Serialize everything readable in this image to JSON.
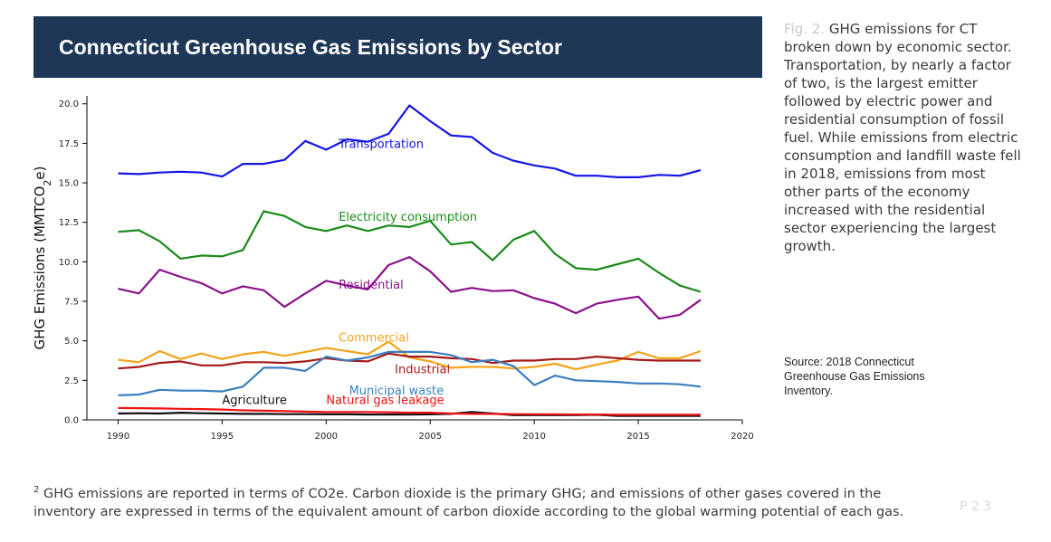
{
  "slide": {
    "title": "Connecticut Greenhouse Gas Emissions by Sector",
    "caption_prefix": "Fig. 2.",
    "caption": "GHG emissions for CT broken down by economic sector. Transportation, by nearly a factor of two, is the largest emitter followed by electric power and residential consumption of fossil fuel. While emissions from electric consumption and landfill waste fell in 2018, emissions from most other parts of the economy increased with the residential sector experiencing the largest growth.",
    "source": "Source: 2018 Connecticut Greenhouse Gas Emissions Inventory.",
    "footnote_mark": "2",
    "footnote": "GHG emissions are reported in terms of CO2e. Carbon dioxide is the primary GHG; and emissions of other gases covered in the inventory are expressed in terms of the equivalent amount of carbon dioxide according to the global warming potential of each gas.",
    "page_mark": "P  2 3"
  },
  "chart_data": {
    "type": "line",
    "title": "Connecticut Greenhouse Gas Emissions by Sector",
    "xlabel": "",
    "ylabel_parts": [
      "GHG Emissions (MMTCO",
      "2",
      "e)"
    ],
    "xlim": [
      1988.5,
      2020
    ],
    "ylim": [
      0,
      20.5
    ],
    "x_ticks": [
      1990,
      1995,
      2000,
      2005,
      2010,
      2015,
      2020
    ],
    "y_ticks": [
      0.0,
      2.5,
      5.0,
      7.5,
      10.0,
      12.5,
      15.0,
      17.5,
      20.0
    ],
    "y_tick_labels": [
      "0.0",
      "2.5",
      "5.0",
      "7.5",
      "10.0",
      "12.5",
      "15.0",
      "17.5",
      "20.0"
    ],
    "grid": false,
    "x": [
      1990,
      1991,
      1992,
      1993,
      1994,
      1995,
      1996,
      1997,
      1998,
      1999,
      2000,
      2001,
      2002,
      2003,
      2004,
      2005,
      2006,
      2007,
      2008,
      2009,
      2010,
      2011,
      2012,
      2013,
      2014,
      2015,
      2016,
      2017,
      2018
    ],
    "series": [
      {
        "name": "Transportation",
        "color": "#1414e6",
        "label_x": 2000.6,
        "label_y": 17.2,
        "values": [
          15.6,
          15.55,
          15.65,
          15.7,
          15.65,
          15.4,
          16.2,
          16.2,
          16.45,
          17.65,
          17.1,
          17.75,
          17.6,
          18.1,
          19.9,
          18.9,
          18.0,
          17.9,
          16.9,
          16.4,
          16.1,
          15.9,
          15.45,
          15.45,
          15.35,
          15.35,
          15.5,
          15.45,
          15.8
        ]
      },
      {
        "name": "Electricity consumption",
        "color": "#1a8a1a",
        "label_x": 2000.6,
        "label_y": 12.6,
        "values": [
          11.9,
          12.0,
          11.3,
          10.2,
          10.4,
          10.35,
          10.75,
          13.2,
          12.9,
          12.2,
          11.95,
          12.3,
          11.95,
          12.3,
          12.2,
          12.6,
          11.1,
          11.25,
          10.1,
          11.4,
          11.95,
          10.5,
          9.6,
          9.5,
          9.85,
          10.2,
          9.3,
          8.5,
          8.1
        ]
      },
      {
        "name": "Residential",
        "color": "#8b118b",
        "label_x": 2000.6,
        "label_y": 8.3,
        "values": [
          8.3,
          8.0,
          9.5,
          9.05,
          8.65,
          8.0,
          8.45,
          8.2,
          7.15,
          8.0,
          8.8,
          8.5,
          8.25,
          9.8,
          10.3,
          9.4,
          8.1,
          8.35,
          8.15,
          8.2,
          7.7,
          7.35,
          6.75,
          7.35,
          7.6,
          7.8,
          6.4,
          6.65,
          7.6
        ]
      },
      {
        "name": "Commercial",
        "color": "#f5a31a",
        "label_x": 2000.6,
        "label_y": 4.95,
        "values": [
          3.8,
          3.65,
          4.35,
          3.85,
          4.2,
          3.85,
          4.15,
          4.3,
          4.05,
          4.3,
          4.55,
          4.35,
          4.15,
          4.95,
          3.95,
          3.7,
          3.3,
          3.35,
          3.35,
          3.25,
          3.35,
          3.55,
          3.2,
          3.5,
          3.75,
          4.3,
          3.9,
          3.9,
          4.35
        ]
      },
      {
        "name": "Industrial",
        "color": "#a31a1a",
        "label_x": 2003.3,
        "label_y": 2.95,
        "values": [
          3.25,
          3.35,
          3.6,
          3.7,
          3.45,
          3.45,
          3.65,
          3.65,
          3.6,
          3.7,
          3.9,
          3.75,
          3.7,
          4.2,
          4.0,
          4.0,
          3.9,
          3.85,
          3.6,
          3.75,
          3.75,
          3.85,
          3.85,
          4.0,
          3.9,
          3.8,
          3.75,
          3.75,
          3.75
        ]
      },
      {
        "name": "Municipal waste",
        "color": "#3a7fc0",
        "label_x": 2001.1,
        "label_y": 1.6,
        "values": [
          1.55,
          1.6,
          1.9,
          1.85,
          1.85,
          1.8,
          2.1,
          3.3,
          3.3,
          3.1,
          4.0,
          3.75,
          3.95,
          4.3,
          4.3,
          4.3,
          4.1,
          3.65,
          3.8,
          3.4,
          2.2,
          2.8,
          2.5,
          2.45,
          2.4,
          2.3,
          2.3,
          2.25,
          2.1
        ]
      },
      {
        "name": "Agriculture",
        "color": "#111111",
        "label_x": 1995.0,
        "label_y": 1.0,
        "values": [
          0.4,
          0.42,
          0.4,
          0.45,
          0.42,
          0.4,
          0.38,
          0.38,
          0.36,
          0.36,
          0.35,
          0.35,
          0.34,
          0.34,
          0.33,
          0.35,
          0.38,
          0.5,
          0.4,
          0.3,
          0.3,
          0.3,
          0.3,
          0.32,
          0.25,
          0.25,
          0.25,
          0.25,
          0.25
        ]
      },
      {
        "name": "Natural gas leakage",
        "color": "#ee1111",
        "label_x": 2000.0,
        "label_y": 1.0,
        "values": [
          0.75,
          0.74,
          0.72,
          0.7,
          0.68,
          0.65,
          0.6,
          0.58,
          0.55,
          0.52,
          0.5,
          0.5,
          0.5,
          0.48,
          0.45,
          0.45,
          0.4,
          0.38,
          0.38,
          0.36,
          0.35,
          0.35,
          0.34,
          0.34,
          0.32,
          0.32,
          0.32,
          0.32,
          0.32
        ]
      }
    ]
  }
}
